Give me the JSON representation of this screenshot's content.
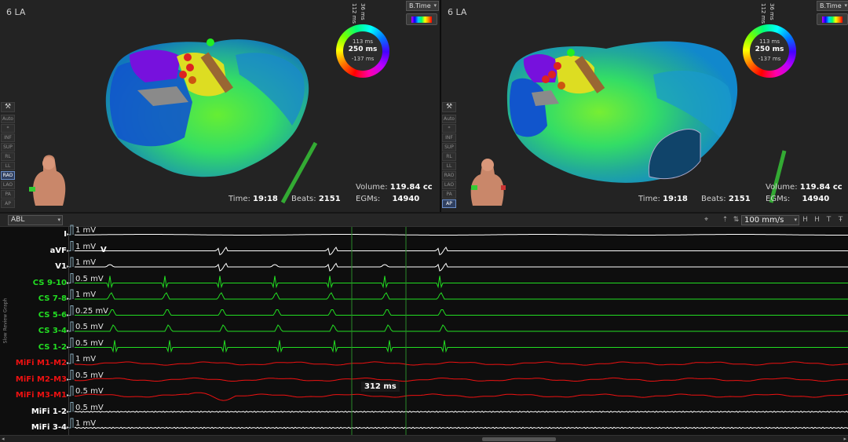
{
  "left_map": {
    "label": "6 LA",
    "btime": "B.Time",
    "dial": {
      "top_left": "112 ms",
      "top_right": "36 ms",
      "v1": "113 ms",
      "v2": "250 ms",
      "v3": "-137 ms"
    },
    "time_label": "Time:",
    "time_value": "19:18",
    "beats_label": "Beats:",
    "beats_value": "2151",
    "volume_label": "Volume:",
    "volume_value": "119.84 cc",
    "egms_label": "EGMs:",
    "egms_value": "14940",
    "views": [
      "Auto",
      "*",
      "INF",
      "SUP",
      "RL",
      "LL",
      "RAO",
      "LAO",
      "PA",
      "AP"
    ],
    "active_view": "RAO"
  },
  "right_map": {
    "label": "6 LA",
    "btime": "B.Time",
    "dial": {
      "top_left": "112 ms",
      "top_right": "36 ms",
      "v1": "113 ms",
      "v2": "250 ms",
      "v3": "-137 ms"
    },
    "time_label": "Time:",
    "time_value": "19:18",
    "beats_label": "Beats:",
    "beats_value": "2151",
    "volume_label": "Volume:",
    "volume_value": "119.84 cc",
    "egms_label": "EGMs:",
    "egms_value": "14940",
    "views": [
      "Auto",
      "*",
      "INF",
      "SUP",
      "RL",
      "LL",
      "RAO",
      "LAO",
      "PA",
      "AP"
    ],
    "active_view": "AP"
  },
  "toolbar": {
    "source": "ABL",
    "speed": "100 mm/s"
  },
  "side_label": "Slow Review Graph",
  "channels": [
    {
      "name": "I",
      "scale": "1 mV",
      "color": "#ffffff"
    },
    {
      "name": "aVF",
      "scale": "1 mV",
      "color": "#ffffff"
    },
    {
      "name": "V1",
      "scale": "1 mV",
      "color": "#ffffff"
    },
    {
      "name": "CS 9-10",
      "scale": "0.5 mV",
      "color": "#22dd22"
    },
    {
      "name": "CS 7-8",
      "scale": "1 mV",
      "color": "#22dd22"
    },
    {
      "name": "CS 5-6",
      "scale": "0.25 mV",
      "color": "#22dd22"
    },
    {
      "name": "CS 3-4",
      "scale": "0.5 mV",
      "color": "#22dd22"
    },
    {
      "name": "CS 1-2",
      "scale": "0.5 mV",
      "color": "#22dd22"
    },
    {
      "name": "MiFi M1-M2",
      "scale": "1 mV",
      "color": "#ee1111"
    },
    {
      "name": "MiFi M2-M3",
      "scale": "0.5 mV",
      "color": "#ee1111"
    },
    {
      "name": "MiFi M3-M1",
      "scale": "0.5 mV",
      "color": "#ee1111"
    },
    {
      "name": "MiFi 1-2",
      "scale": "0.5 mV",
      "color": "#ffffff"
    },
    {
      "name": "MiFi 3-4",
      "scale": "1 mV",
      "color": "#ffffff"
    }
  ],
  "marker_v": "V",
  "caliper": "312 ms"
}
